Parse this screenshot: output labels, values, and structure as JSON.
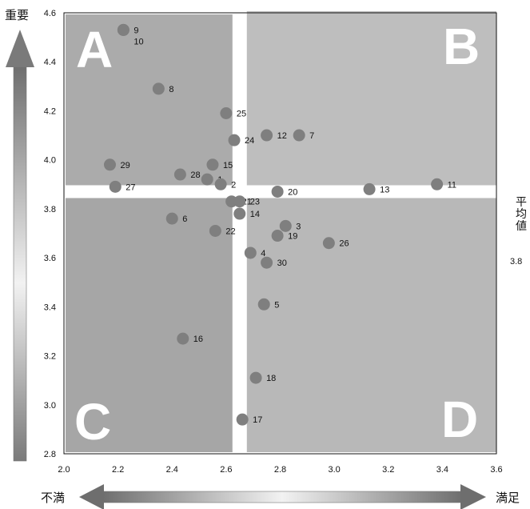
{
  "chart_data": {
    "type": "scatter",
    "title": "",
    "xlabel": "",
    "ylabel": "",
    "xlim": [
      2.0,
      3.6
    ],
    "ylim": [
      2.8,
      4.6
    ],
    "x_ticks": [
      "2.0",
      "2.2",
      "2.4",
      "2.6",
      "2.8",
      "3.0",
      "3.2",
      "3.4",
      "3.6"
    ],
    "y_ticks": [
      "2.8",
      "3.0",
      "3.2",
      "3.4",
      "3.6",
      "3.8",
      "4.0",
      "4.2",
      "4.4",
      "4.6"
    ],
    "x_divider": 2.65,
    "y_divider": 3.87,
    "quadrants": {
      "top_left": "A",
      "top_right": "B",
      "bottom_left": "C",
      "bottom_right": "D"
    },
    "arrow_labels": {
      "up": "重要",
      "left": "不満",
      "right": "満足"
    },
    "average_label": "平均値",
    "average_value_partial": "3.8",
    "points": [
      {
        "label": "1",
        "x": 2.53,
        "y": 3.92
      },
      {
        "label": "2",
        "x": 2.58,
        "y": 3.9
      },
      {
        "label": "3",
        "x": 2.82,
        "y": 3.73
      },
      {
        "label": "4",
        "x": 2.69,
        "y": 3.62
      },
      {
        "label": "5",
        "x": 2.74,
        "y": 3.41
      },
      {
        "label": "6",
        "x": 2.4,
        "y": 3.76
      },
      {
        "label": "7",
        "x": 2.87,
        "y": 4.1
      },
      {
        "label": "8",
        "x": 2.35,
        "y": 4.29
      },
      {
        "label": "9",
        "x": 2.22,
        "y": 4.53
      },
      {
        "label": "10",
        "x": 2.22,
        "y": 4.53
      },
      {
        "label": "11",
        "x": 3.38,
        "y": 3.9
      },
      {
        "label": "12",
        "x": 2.75,
        "y": 4.1
      },
      {
        "label": "13",
        "x": 3.13,
        "y": 3.88
      },
      {
        "label": "14",
        "x": 2.65,
        "y": 3.78
      },
      {
        "label": "15",
        "x": 2.55,
        "y": 3.98
      },
      {
        "label": "16",
        "x": 2.44,
        "y": 3.27
      },
      {
        "label": "17",
        "x": 2.66,
        "y": 2.94
      },
      {
        "label": "18",
        "x": 2.71,
        "y": 3.11
      },
      {
        "label": "19",
        "x": 2.79,
        "y": 3.69
      },
      {
        "label": "20",
        "x": 2.79,
        "y": 3.87
      },
      {
        "label": "21",
        "x": 2.62,
        "y": 3.83
      },
      {
        "label": "22",
        "x": 2.56,
        "y": 3.71
      },
      {
        "label": "23",
        "x": 2.65,
        "y": 3.83
      },
      {
        "label": "24",
        "x": 2.63,
        "y": 4.08
      },
      {
        "label": "25",
        "x": 2.6,
        "y": 4.19
      },
      {
        "label": "26",
        "x": 2.98,
        "y": 3.66
      },
      {
        "label": "27",
        "x": 2.19,
        "y": 3.89
      },
      {
        "label": "28",
        "x": 2.43,
        "y": 3.94
      },
      {
        "label": "29",
        "x": 2.17,
        "y": 3.98
      },
      {
        "label": "30",
        "x": 2.75,
        "y": 3.58
      }
    ]
  }
}
